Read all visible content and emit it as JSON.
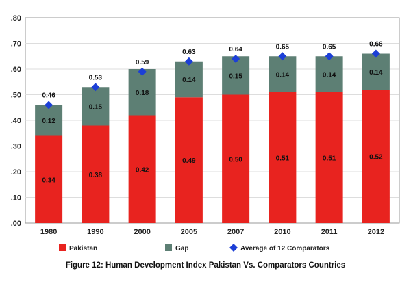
{
  "chart_data": {
    "type": "bar",
    "stacked": true,
    "categories": [
      "1980",
      "1990",
      "2000",
      "2005",
      "2007",
      "2010",
      "2011",
      "2012"
    ],
    "series": [
      {
        "name": "Pakistan",
        "color": "#e8231f",
        "values": [
          0.34,
          0.38,
          0.42,
          0.49,
          0.5,
          0.51,
          0.51,
          0.52
        ],
        "labels": [
          "0.34",
          "0.38",
          "0.42",
          "0.49",
          "0.50",
          "0.51",
          "0.51",
          "0.52"
        ]
      },
      {
        "name": "Gap",
        "color": "#5d7f74",
        "values": [
          0.12,
          0.15,
          0.18,
          0.14,
          0.15,
          0.14,
          0.14,
          0.14
        ],
        "labels": [
          "0.12",
          "0.15",
          "0.18",
          "0.14",
          "0.15",
          "0.14",
          "0.14",
          "0.14"
        ]
      },
      {
        "name": "Average of 12 Comparators",
        "type": "scatter",
        "marker": "diamond",
        "color": "#1c3fd6",
        "values": [
          0.46,
          0.53,
          0.59,
          0.63,
          0.64,
          0.65,
          0.65,
          0.66
        ],
        "labels": [
          "0.46",
          "0.53",
          "0.59",
          "0.63",
          "0.64",
          "0.65",
          "0.65",
          "0.66"
        ]
      }
    ],
    "ylim": [
      0,
      0.8
    ],
    "yticks": [
      ".00",
      ".10",
      ".20",
      ".30",
      ".40",
      ".50",
      ".60",
      ".70",
      ".80"
    ],
    "grid": true,
    "legend_position": "bottom",
    "title": "",
    "xlabel": "",
    "ylabel": ""
  },
  "caption": "Figure 12: Human Development Index Pakistan Vs. Comparators Countries"
}
